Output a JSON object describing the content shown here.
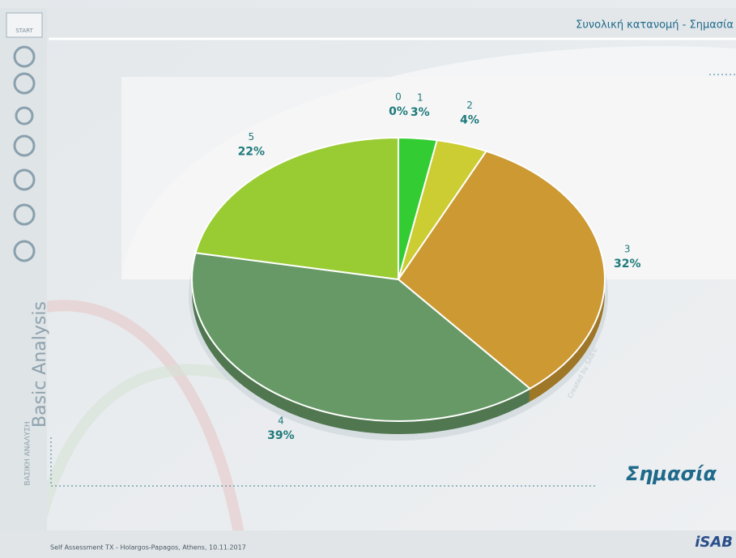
{
  "header": {
    "title": "Συνολική κατανομή - Σημασία",
    "start": "START"
  },
  "sidebar": {
    "title": "Basic Analysis",
    "subtitle": "ΒΑΣΙΚΗ ΑΝΑΛΥΣΗ"
  },
  "chart_data": {
    "type": "pie",
    "title": "Σημασία",
    "watermark": "Created by SAB©",
    "categories": [
      "0",
      "1",
      "2",
      "3",
      "4",
      "5"
    ],
    "values": [
      0,
      3,
      4,
      32,
      39,
      22
    ],
    "value_labels": [
      "0%",
      "3%",
      "4%",
      "32%",
      "39%",
      "22%"
    ],
    "colors": [
      "#0d3332",
      "#33cc33",
      "#cccc33",
      "#cc9933",
      "#669966",
      "#99cc33"
    ]
  },
  "footer": {
    "text": "Self Assessment TX - Holargos-Papagos, Athens, 10.11.2017",
    "logo": "iSAB"
  }
}
